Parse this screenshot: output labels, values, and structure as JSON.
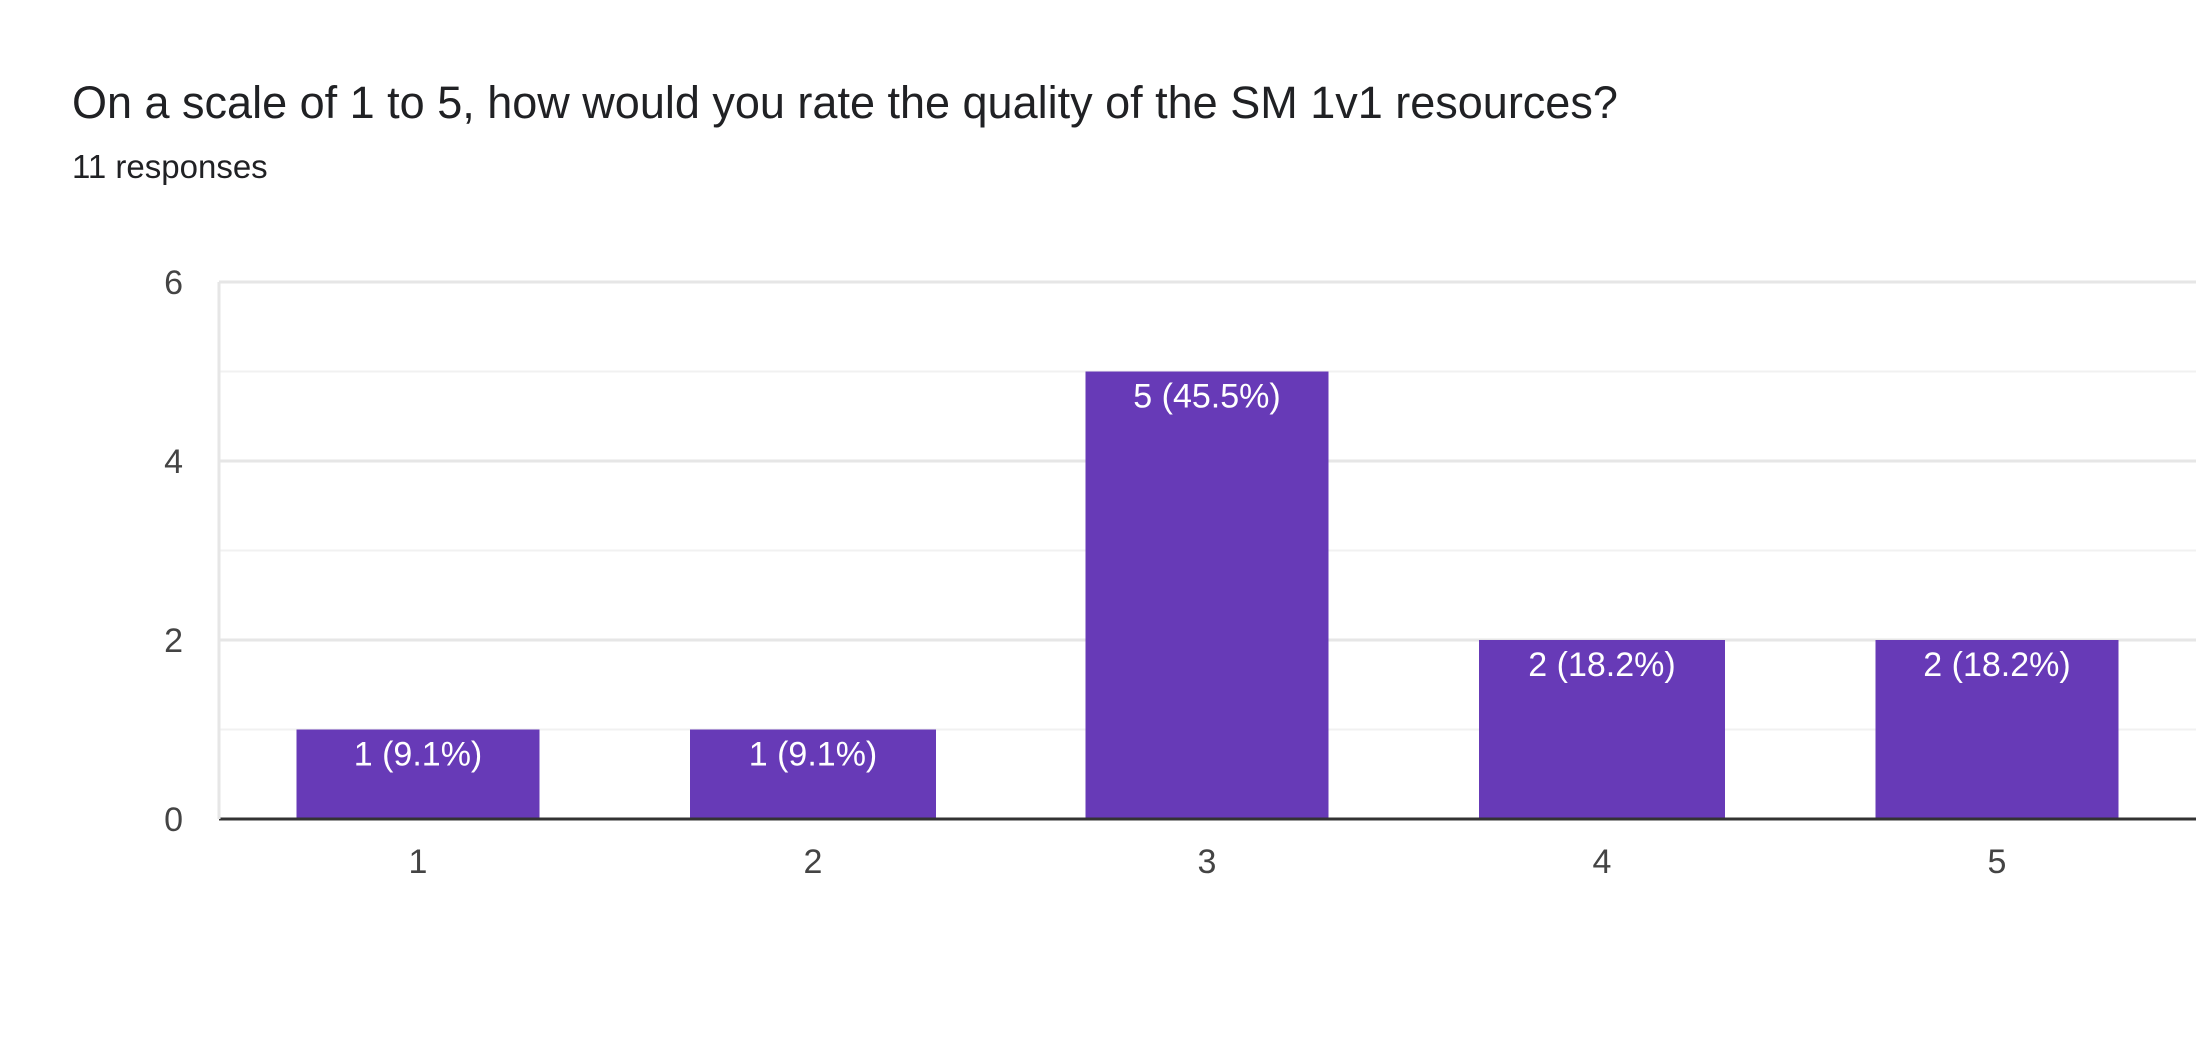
{
  "header": {
    "question": "On a scale of 1 to 5, how would you rate the quality of the SM 1v1 resources?",
    "responses": "11 responses"
  },
  "colors": {
    "bar": "#673ab7",
    "grid_major": "#e6e6e6",
    "grid_minor": "#f1f1f1",
    "axis": "#333333"
  },
  "chart_data": {
    "type": "bar",
    "categories": [
      "1",
      "2",
      "3",
      "4",
      "5"
    ],
    "values": [
      1,
      1,
      5,
      2,
      2
    ],
    "data_labels": [
      "1 (9.1%)",
      "1 (9.1%)",
      "5 (45.5%)",
      "2 (18.2%)",
      "2 (18.2%)"
    ],
    "y_ticks": [
      0,
      2,
      4,
      6
    ],
    "ylim": [
      0,
      6
    ],
    "grid": true,
    "legend": "none"
  }
}
